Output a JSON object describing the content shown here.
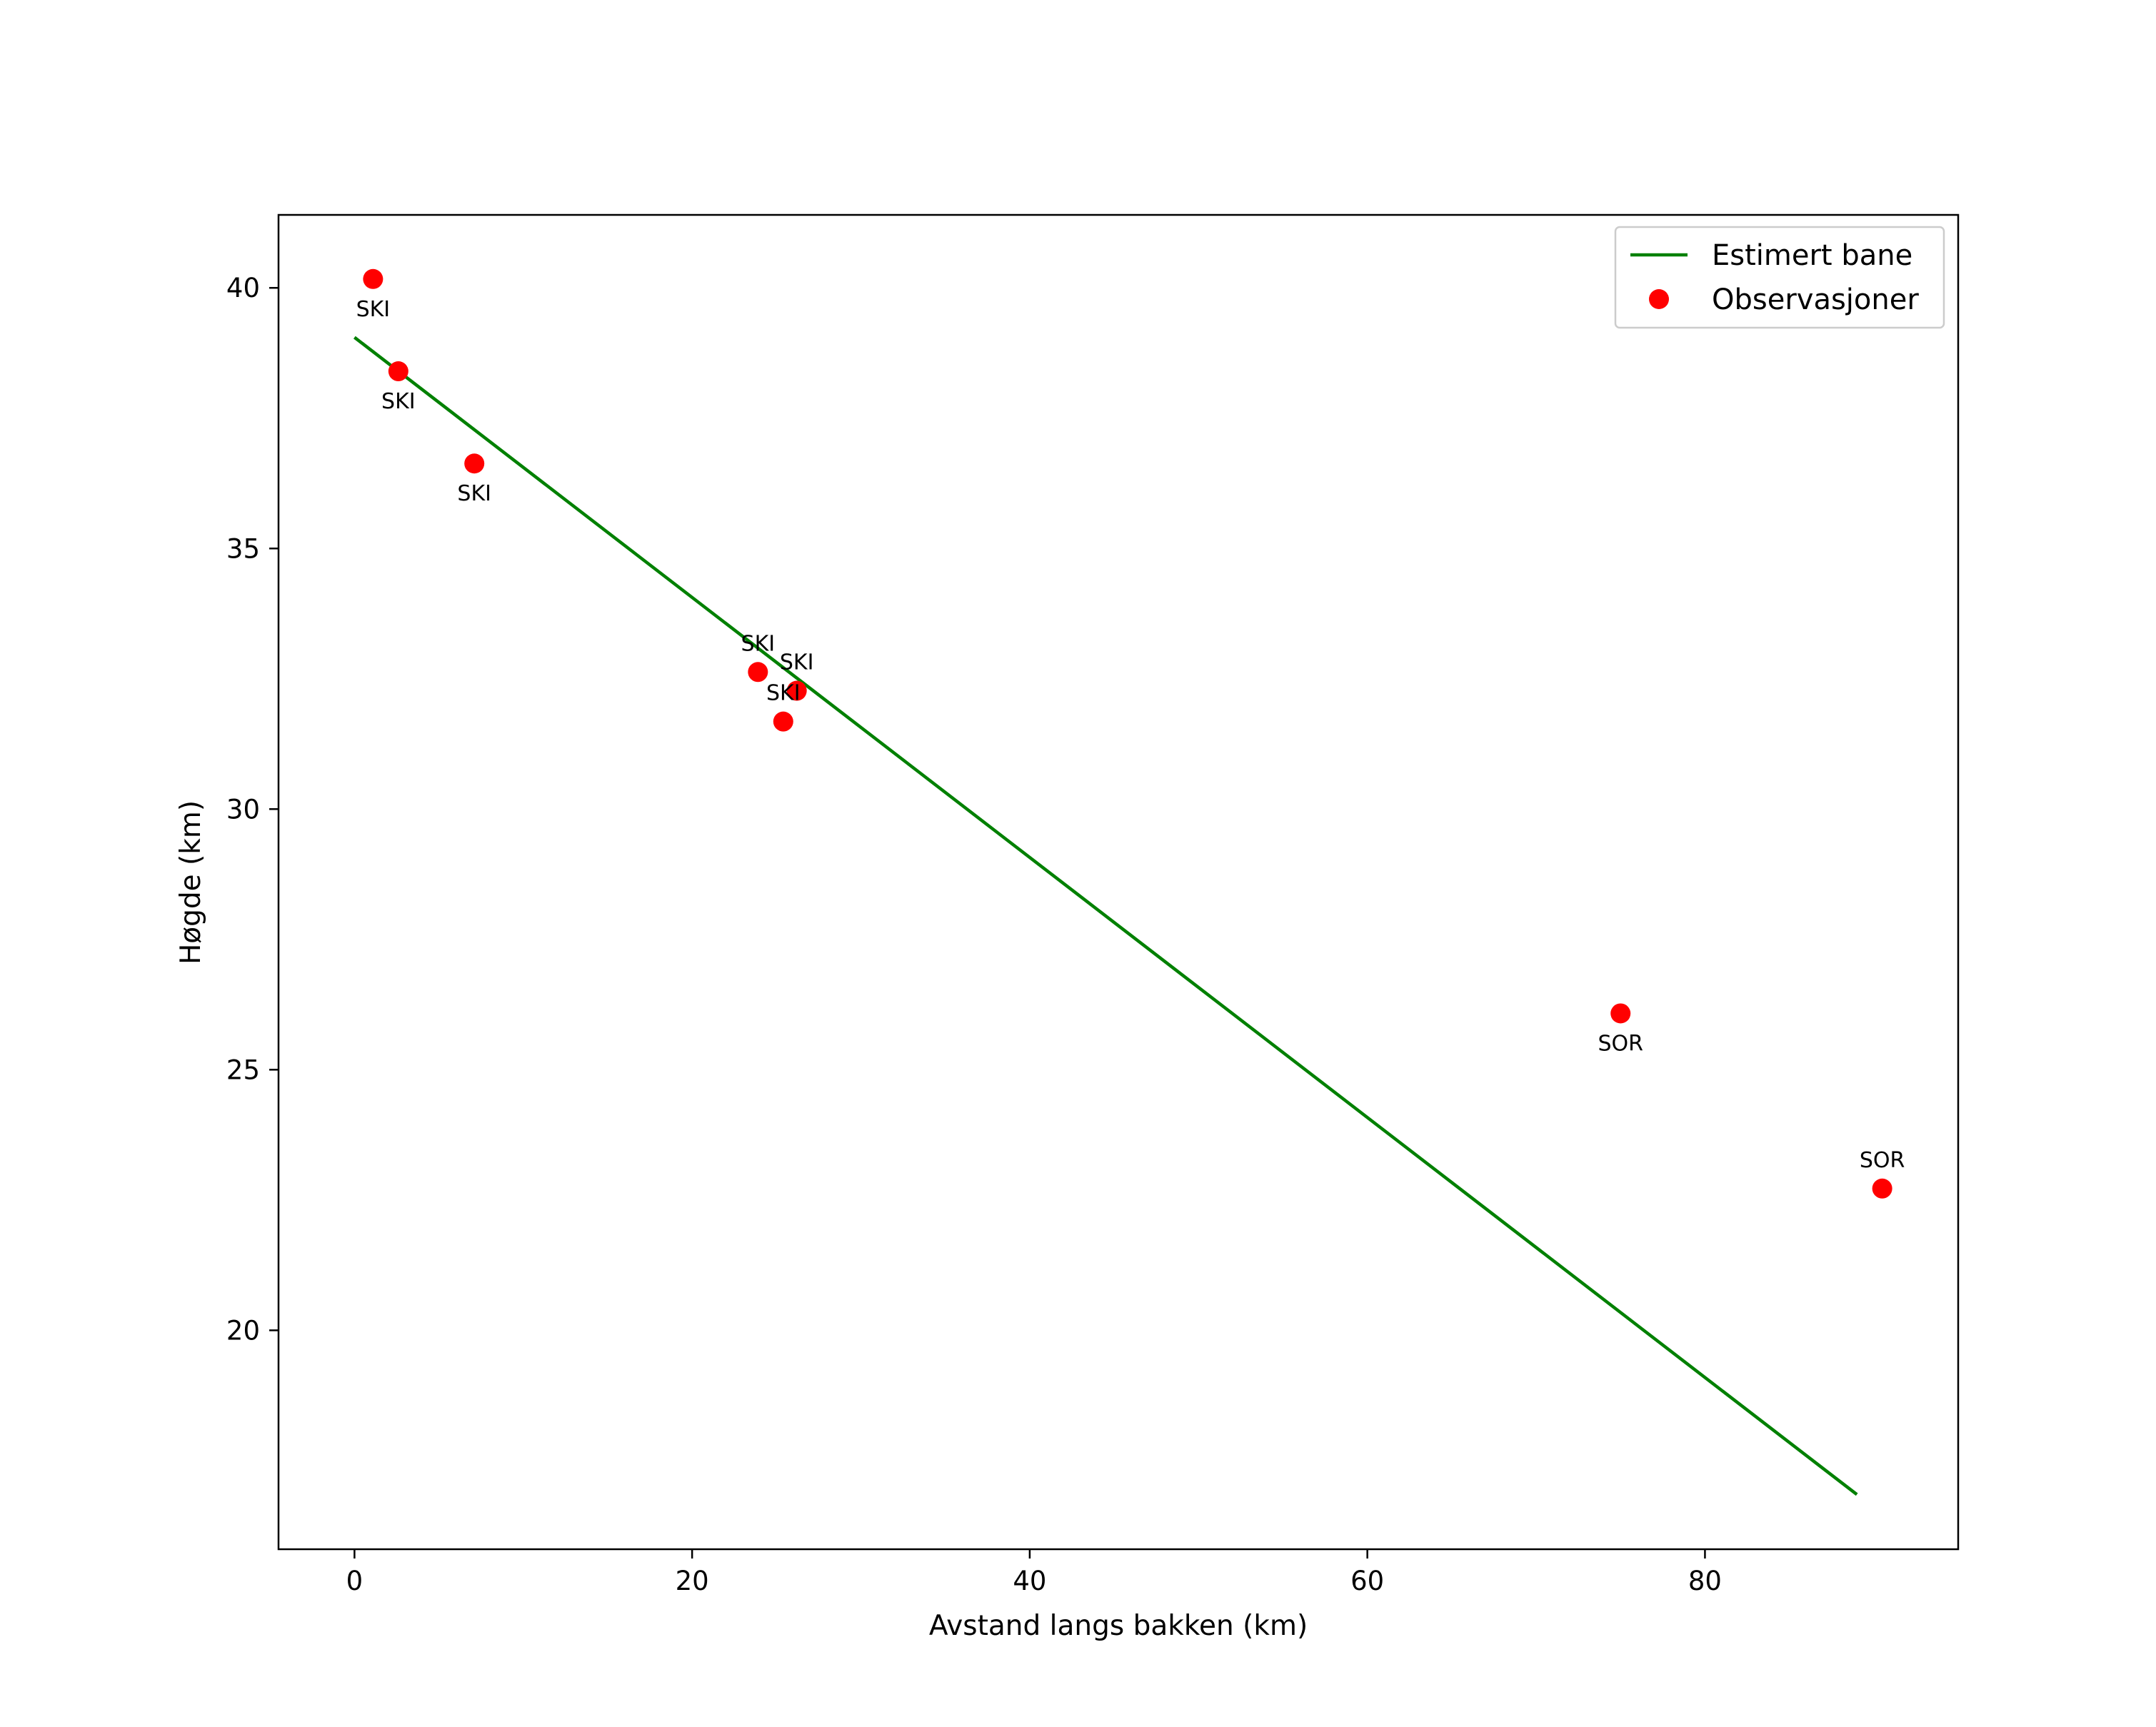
{
  "chart_data": {
    "type": "scatter",
    "title": "",
    "xlabel": "Avstand langs bakken (km)",
    "ylabel": "Høgde (km)",
    "xlim": [
      -4.5,
      95.0
    ],
    "ylim": [
      15.8,
      41.4
    ],
    "grid": false,
    "x_ticks": [
      0,
      20,
      40,
      60,
      80
    ],
    "y_ticks": [
      20,
      25,
      30,
      35,
      40
    ],
    "legend_position": "top-right",
    "series": [
      {
        "name": "Estimert bane",
        "kind": "line",
        "color": "#008000",
        "points": [
          {
            "x": 0.0,
            "y": 39.05
          },
          {
            "x": 89.0,
            "y": 16.85
          }
        ]
      },
      {
        "name": "Observasjoner",
        "kind": "scatter",
        "color": "#ff0000",
        "points": [
          {
            "x": 1.1,
            "y": 40.17,
            "label": "SKI",
            "label_pos": "below"
          },
          {
            "x": 2.6,
            "y": 38.4,
            "label": "SKI",
            "label_pos": "below"
          },
          {
            "x": 7.1,
            "y": 36.63,
            "label": "SKI",
            "label_pos": "below"
          },
          {
            "x": 23.9,
            "y": 32.63,
            "label": "SKI",
            "label_pos": "above"
          },
          {
            "x": 26.2,
            "y": 32.27,
            "label": "SKI",
            "label_pos": "above"
          },
          {
            "x": 25.4,
            "y": 31.68,
            "label": "SKI",
            "label_pos": "above"
          },
          {
            "x": 75.0,
            "y": 26.08,
            "label": "SOR",
            "label_pos": "below"
          },
          {
            "x": 90.5,
            "y": 22.72,
            "label": "SOR",
            "label_pos": "above"
          }
        ]
      }
    ]
  }
}
